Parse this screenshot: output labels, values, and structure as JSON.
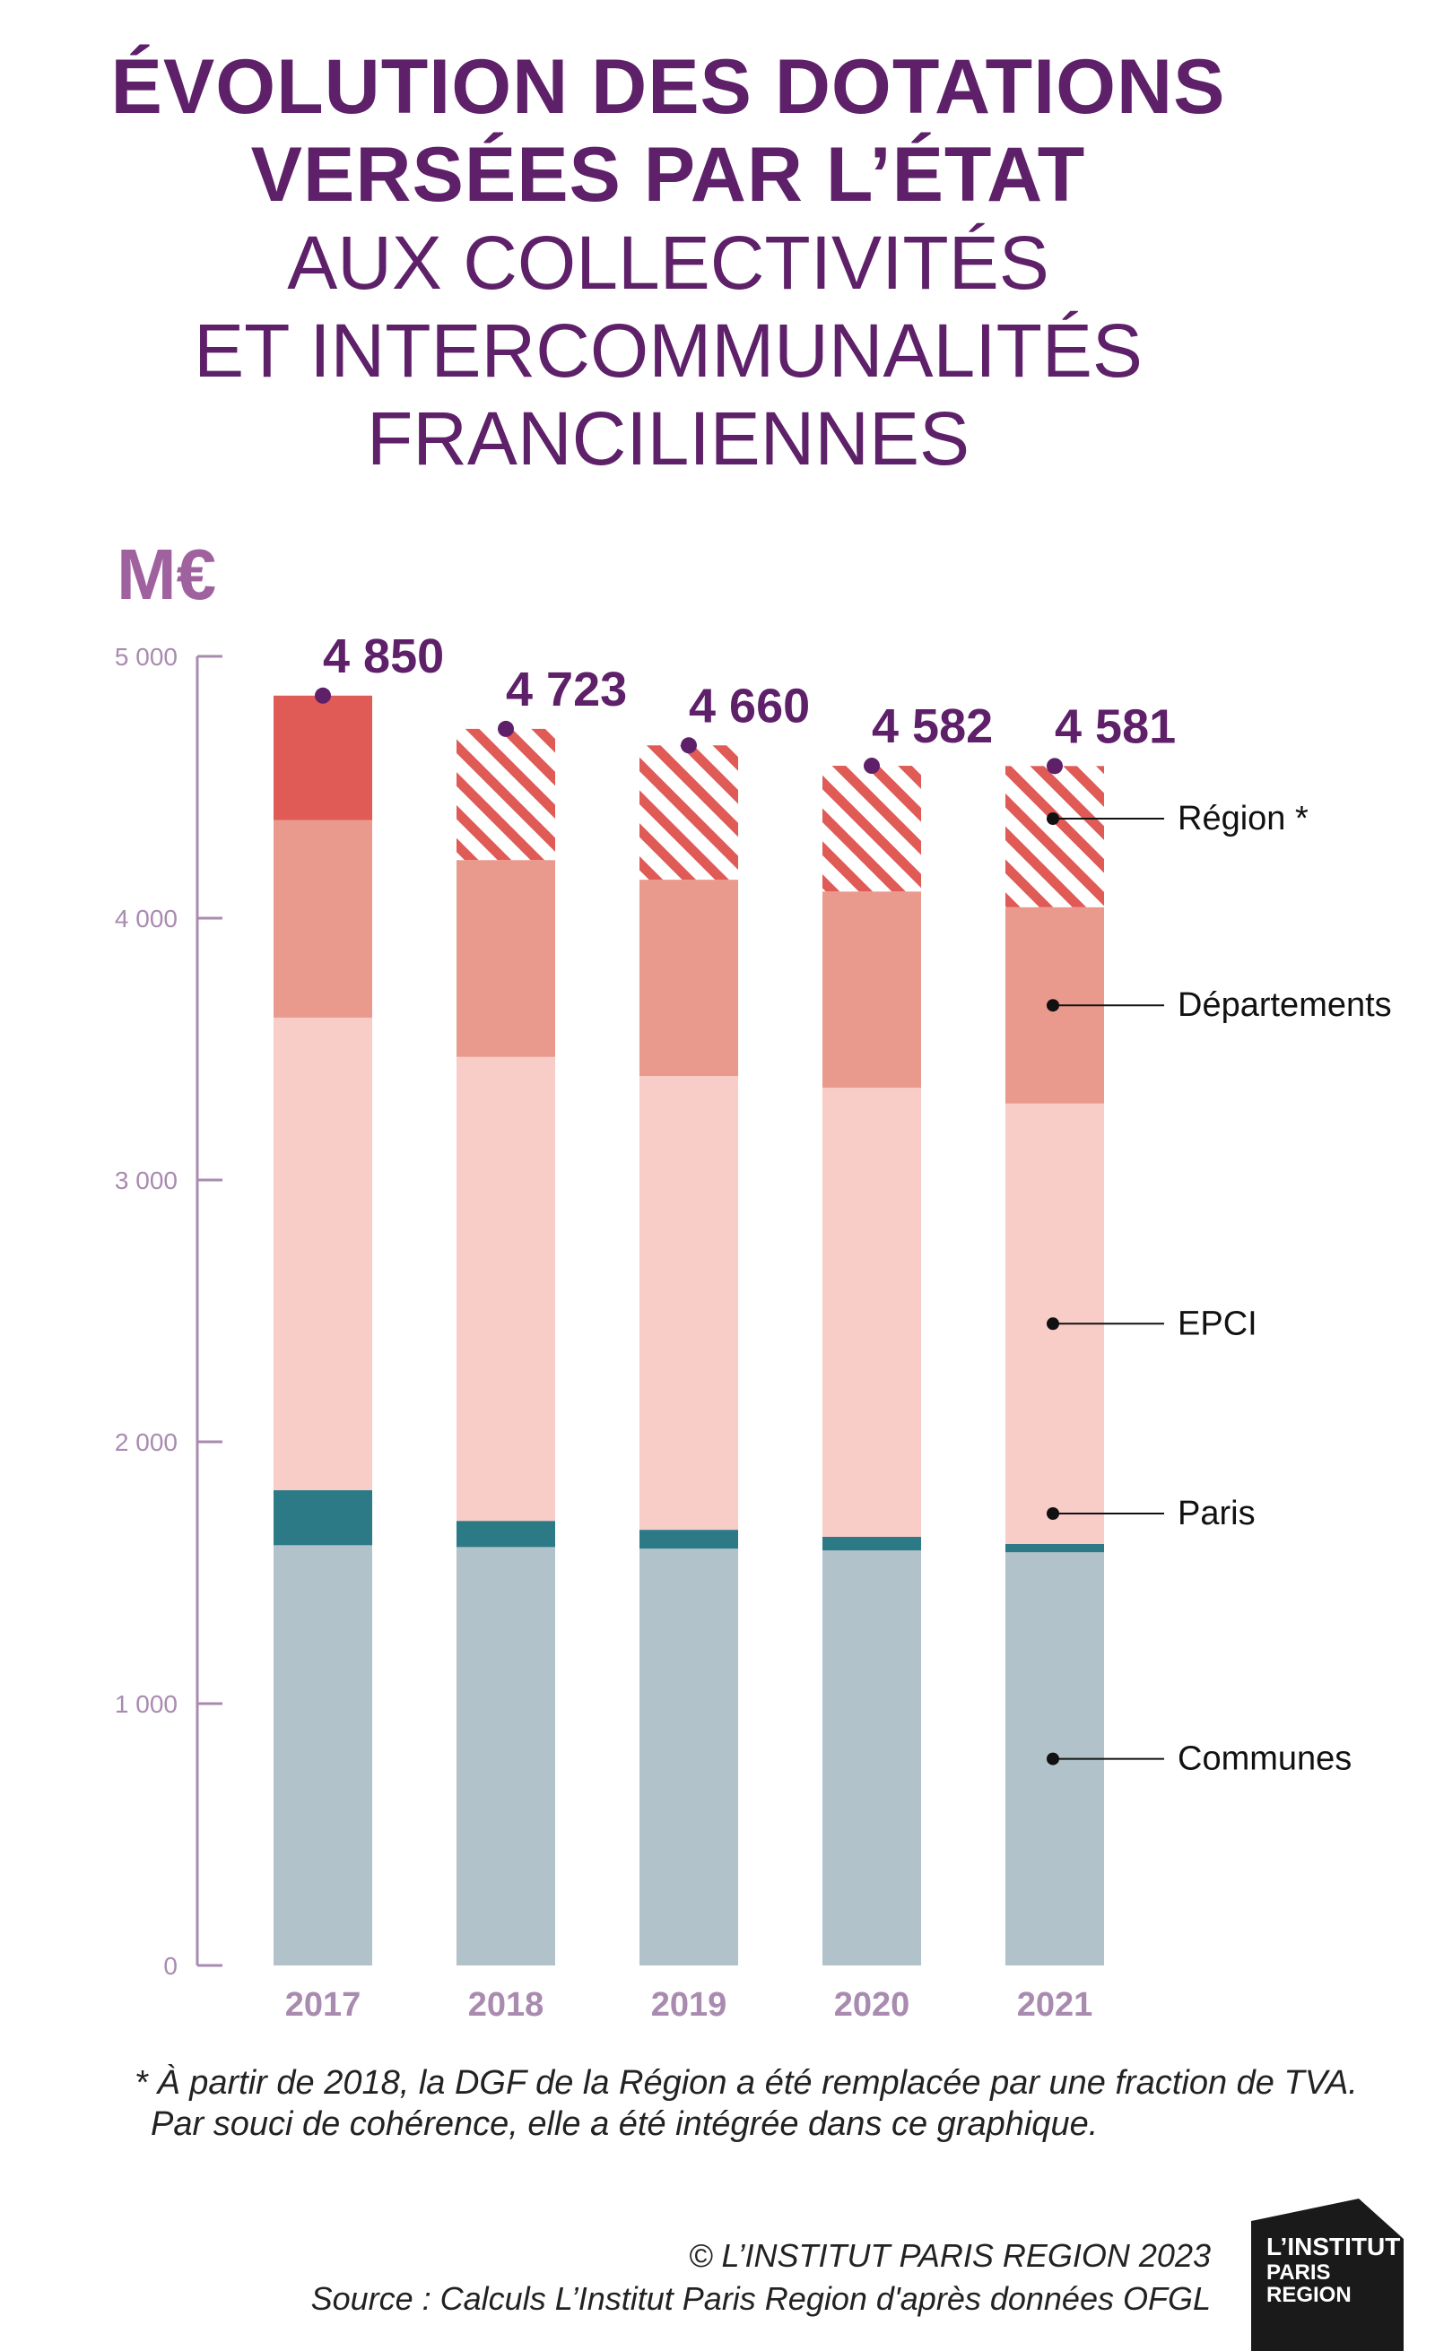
{
  "title": {
    "line1": "ÉVOLUTION DES DOTATIONS",
    "line2": "VERSÉES PAR L’ÉTAT",
    "line3": "AUX COLLECTIVITÉS",
    "line4": "ET INTERCOMMUNALITÉS",
    "line5": "FRANCILIENNES"
  },
  "footnote": {
    "line1": "* À partir de 2018, la DGF de la Région a été remplacée par une fraction de TVA.",
    "line2": "Par souci de cohérence, elle a été intégrée dans ce graphique."
  },
  "credits": {
    "copyright": "© L’INSTITUT PARIS REGION 2023",
    "source": "Source : Calculs L’Institut Paris Region d'après données OFGL"
  },
  "logo": {
    "line1": "L’INSTITUT",
    "line2": "PARIS",
    "line3": "REGION"
  },
  "colors": {
    "accent": "#5e2069",
    "axis": "#a98bb0",
    "communes": "#b2c2ca",
    "paris": "#2b7a86",
    "epci": "#f8cdc8",
    "departements": "#ea9a8c",
    "region": "#e05a56",
    "region_hatch": "#e05a56"
  },
  "chart_data": {
    "type": "bar",
    "stacked": true,
    "unit": "M€",
    "categories": [
      "2017",
      "2018",
      "2019",
      "2020",
      "2021"
    ],
    "ylim": [
      0,
      5000
    ],
    "yticks": [
      0,
      1000,
      2000,
      3000,
      4000,
      5000
    ],
    "ytick_labels": [
      "0",
      "1 000",
      "2 000",
      "3 000",
      "4 000",
      "5 000"
    ],
    "series": [
      {
        "name": "Communes",
        "key": "communes",
        "values": [
          1605,
          1598,
          1592,
          1585,
          1578
        ]
      },
      {
        "name": "Paris",
        "key": "paris",
        "values": [
          210,
          100,
          72,
          52,
          32
        ]
      },
      {
        "name": "EPCI",
        "key": "epci",
        "values": [
          1805,
          1772,
          1733,
          1715,
          1682
        ]
      },
      {
        "name": "Départements",
        "key": "departements",
        "values": [
          755,
          752,
          750,
          750,
          750
        ]
      },
      {
        "name": "Région *",
        "key": "region",
        "values": [
          475,
          501,
          513,
          480,
          539
        ],
        "hatched_from_index": 1
      }
    ],
    "totals": [
      4850,
      4723,
      4660,
      4582,
      4581
    ],
    "total_labels": [
      "4 850",
      "4 723",
      "4 660",
      "4 582",
      "4 581"
    ],
    "legend_placement": "right, inline labels",
    "grid": false
  }
}
